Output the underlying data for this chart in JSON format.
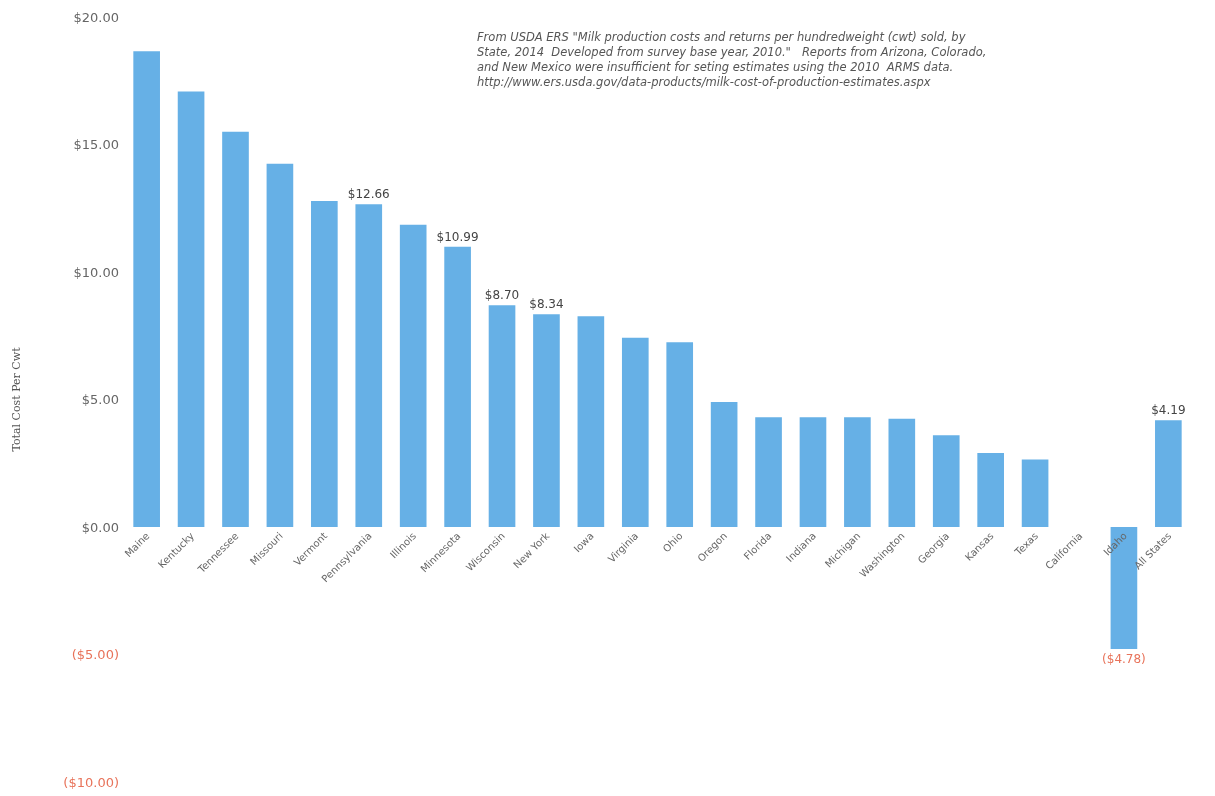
{
  "chart_data": {
    "type": "bar",
    "ylabel": "Total Cost Per Cwt",
    "categories": [
      "Maine",
      "Kentucky",
      "Tennessee",
      "Missouri",
      "Vermont",
      "Pennsylvania",
      "Illinois",
      "Minnesota",
      "Wisconsin",
      "New York",
      "Iowa",
      "Virginia",
      "Ohio",
      "Oregon",
      "Florida",
      "Indiana",
      "Michigan",
      "Washington",
      "Georgia",
      "Kansas",
      "Texas",
      "California",
      "Idaho",
      "All States"
    ],
    "values": [
      18.66,
      17.08,
      15.5,
      14.25,
      12.78,
      12.66,
      11.85,
      10.99,
      8.7,
      8.34,
      8.26,
      7.42,
      7.25,
      4.9,
      4.3,
      4.3,
      4.3,
      4.25,
      3.6,
      2.9,
      2.65,
      null,
      -4.78,
      4.19
    ],
    "value_labels": [
      null,
      null,
      null,
      null,
      null,
      "$12.66",
      null,
      "$10.99",
      "$8.70",
      "$8.34",
      null,
      null,
      null,
      null,
      null,
      null,
      null,
      null,
      null,
      null,
      null,
      null,
      "($4.78)",
      "$4.19"
    ],
    "color": "#66b0e6",
    "ylim": [
      -10,
      20
    ],
    "yticks": [
      {
        "value": -10,
        "label": "($10.00)"
      },
      {
        "value": -5,
        "label": "($5.00)"
      },
      {
        "value": 0,
        "label": "$0.00"
      },
      {
        "value": 5,
        "label": "$5.00"
      },
      {
        "value": 10,
        "label": "$10.00"
      },
      {
        "value": 15,
        "label": "$15.00"
      },
      {
        "value": 20,
        "label": "$20.00"
      }
    ],
    "grid": false,
    "annotations": [
      "From USDA ERS \"Milk production costs and returns per hundredweight (cwt) sold, by\nState, 2014  Developed from survey base year, 2010.\"   Reports from Arizona, Colorado,\nand New Mexico were insufficient for seting estimates using the 2010  ARMS data.\nhttp://www.ers.usda.gov/data-products/milk-cost-of-production-estimates.aspx"
    ]
  }
}
